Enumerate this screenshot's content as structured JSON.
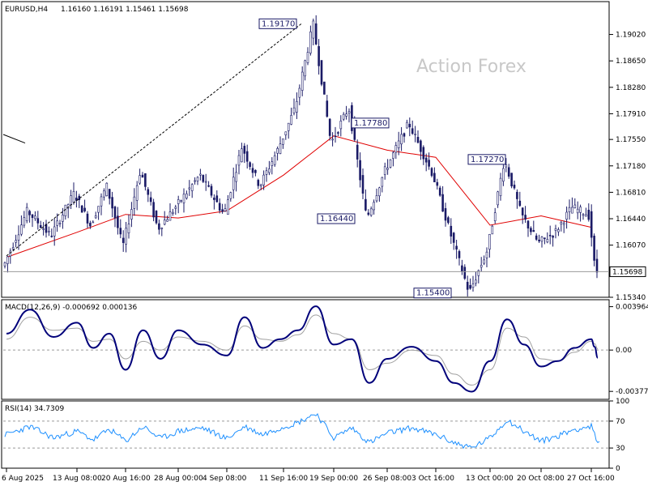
{
  "header": {
    "symbol": "EURUSD,H4",
    "ohlc": "1.16160 1.16191 1.15461 1.15698"
  },
  "watermark": "Action Forex",
  "colors": {
    "candle": "#1a1a66",
    "ma": "#e00000",
    "macd_main": "#00007a",
    "macd_signal": "#a0a0a0",
    "rsi": "#1e90ff",
    "level": "#9a9a9a",
    "border": "#000000"
  },
  "x_labels": [
    "6 Aug 2025",
    "13 Aug 08:00",
    "20 Aug 16:00",
    "28 Aug 00:00",
    "4 Sep 08:00",
    "11 Sep 16:00",
    "19 Sep 00:00",
    "26 Sep 08:00",
    "3 Oct 16:00",
    "13 Oct 00:00",
    "20 Oct 08:00",
    "27 Oct 16:00"
  ],
  "price_panel": {
    "tick_labels": [
      "1.19020",
      "1.18650",
      "1.18280",
      "1.17910",
      "1.17550",
      "1.17180",
      "1.16810",
      "1.16440",
      "1.16070",
      "1.15340"
    ],
    "current_price": "1.15698",
    "callouts": [
      "1.19170",
      "1.17780",
      "1.17270",
      "1.16440",
      "1.15400"
    ]
  },
  "macd_panel": {
    "label": "MACD(12,26,9) -0.000692 0.000136",
    "tick_labels": [
      "0.003964",
      "0.00",
      "-0.003774"
    ]
  },
  "rsi_panel": {
    "label": "RSI(14) 34.7309",
    "tick_labels": [
      "100",
      "70",
      "30",
      "0"
    ]
  },
  "chart_data": [
    {
      "type": "candlestick",
      "title": "EURUSD,H4",
      "ylim": [
        1.1534,
        1.1948
      ],
      "x_range": [
        "6 Aug 2025",
        "27 Oct 16:00"
      ],
      "key_levels": [
        {
          "label": "1.19170",
          "value": 1.1917
        },
        {
          "label": "1.17780",
          "value": 1.1778
        },
        {
          "label": "1.17270",
          "value": 1.1727
        },
        {
          "label": "1.16440",
          "value": 1.1644
        },
        {
          "label": "1.15400",
          "value": 1.154
        }
      ],
      "anchors": [
        {
          "x": "6 Aug 2025",
          "y": 1.1578
        },
        {
          "x": "8 Aug",
          "y": 1.1655
        },
        {
          "x": "11 Aug",
          "y": 1.162
        },
        {
          "x": "13 Aug 08:00",
          "y": 1.168
        },
        {
          "x": "15 Aug",
          "y": 1.1635
        },
        {
          "x": "18 Aug",
          "y": 1.169
        },
        {
          "x": "20 Aug 16:00",
          "y": 1.1605
        },
        {
          "x": "22 Aug",
          "y": 1.1712
        },
        {
          "x": "25 Aug",
          "y": 1.163
        },
        {
          "x": "28 Aug 00:00",
          "y": 1.166
        },
        {
          "x": "1 Sep",
          "y": 1.1705
        },
        {
          "x": "4 Sep 08:00",
          "y": 1.165
        },
        {
          "x": "8 Sep",
          "y": 1.1745
        },
        {
          "x": "10 Sep",
          "y": 1.169
        },
        {
          "x": "12 Sep",
          "y": 1.174
        },
        {
          "x": "15 Sep",
          "y": 1.18
        },
        {
          "x": "17 Sep",
          "y": 1.1917
        },
        {
          "x": "19 Sep 00:00",
          "y": 1.175
        },
        {
          "x": "23 Sep",
          "y": 1.18
        },
        {
          "x": "25 Sep",
          "y": 1.1644
        },
        {
          "x": "26 Sep 08:00",
          "y": 1.171
        },
        {
          "x": "30 Sep",
          "y": 1.1778
        },
        {
          "x": "3 Oct 16:00",
          "y": 1.1705
        },
        {
          "x": "7 Oct",
          "y": 1.162
        },
        {
          "x": "9 Oct",
          "y": 1.154
        },
        {
          "x": "13 Oct 00:00",
          "y": 1.16
        },
        {
          "x": "15 Oct",
          "y": 1.1727
        },
        {
          "x": "17 Oct",
          "y": 1.165
        },
        {
          "x": "20 Oct 08:00",
          "y": 1.161
        },
        {
          "x": "22 Oct",
          "y": 1.1625
        },
        {
          "x": "24 Oct",
          "y": 1.166
        },
        {
          "x": "27 Oct 16:00",
          "y": 1.165
        },
        {
          "x": "29 Oct",
          "y": 1.1616
        },
        {
          "x": "30 Oct",
          "y": 1.157
        }
      ],
      "moving_average_anchors": [
        {
          "x": "6 Aug 2025",
          "y": 1.159
        },
        {
          "x": "13 Aug 08:00",
          "y": 1.1625
        },
        {
          "x": "20 Aug 16:00",
          "y": 1.165
        },
        {
          "x": "28 Aug 00:00",
          "y": 1.1645
        },
        {
          "x": "4 Sep 08:00",
          "y": 1.1655
        },
        {
          "x": "11 Sep 16:00",
          "y": 1.1705
        },
        {
          "x": "19 Sep 00:00",
          "y": 1.176
        },
        {
          "x": "26 Sep 08:00",
          "y": 1.174
        },
        {
          "x": "3 Oct 16:00",
          "y": 1.173
        },
        {
          "x": "13 Oct 00:00",
          "y": 1.1635
        },
        {
          "x": "20 Oct 08:00",
          "y": 1.1648
        },
        {
          "x": "27 Oct 16:00",
          "y": 1.1632
        }
      ],
      "current_price": 1.15698
    },
    {
      "type": "line",
      "title": "MACD(12,26,9)",
      "ylim": [
        -0.0045,
        0.0046
      ],
      "values_shown": {
        "main": -0.000692,
        "signal": 0.000136
      },
      "main_anchors": [
        {
          "x": "6 Aug 2025",
          "y": 0.0015
        },
        {
          "x": "8 Aug",
          "y": 0.0037
        },
        {
          "x": "11 Aug",
          "y": 0.0012
        },
        {
          "x": "13 Aug 08:00",
          "y": 0.0025
        },
        {
          "x": "15 Aug",
          "y": 0.0002
        },
        {
          "x": "18 Aug",
          "y": 0.0015
        },
        {
          "x": "20 Aug 16:00",
          "y": -0.0018
        },
        {
          "x": "22 Aug",
          "y": 0.0018
        },
        {
          "x": "25 Aug",
          "y": -0.0008
        },
        {
          "x": "28 Aug 00:00",
          "y": 0.0018
        },
        {
          "x": "1 Sep",
          "y": 0.0005
        },
        {
          "x": "4 Sep 08:00",
          "y": -0.0005
        },
        {
          "x": "8 Sep",
          "y": 0.003
        },
        {
          "x": "10 Sep",
          "y": 0.0002
        },
        {
          "x": "12 Sep",
          "y": 0.001
        },
        {
          "x": "15 Sep",
          "y": 0.0018
        },
        {
          "x": "17 Sep",
          "y": 0.004
        },
        {
          "x": "19 Sep 00:00",
          "y": 0.0005
        },
        {
          "x": "23 Sep",
          "y": 0.001
        },
        {
          "x": "25 Sep",
          "y": -0.003
        },
        {
          "x": "26 Sep 08:00",
          "y": -0.0008
        },
        {
          "x": "30 Sep",
          "y": 0.0003
        },
        {
          "x": "3 Oct 16:00",
          "y": -0.001
        },
        {
          "x": "7 Oct",
          "y": -0.003
        },
        {
          "x": "9 Oct",
          "y": -0.0038
        },
        {
          "x": "13 Oct 00:00",
          "y": -0.001
        },
        {
          "x": "15 Oct",
          "y": 0.0028
        },
        {
          "x": "17 Oct",
          "y": 0.0005
        },
        {
          "x": "20 Oct 08:00",
          "y": -0.0015
        },
        {
          "x": "22 Oct",
          "y": -0.001
        },
        {
          "x": "24 Oct",
          "y": 0.0002
        },
        {
          "x": "27 Oct 16:00",
          "y": 0.001
        },
        {
          "x": "29 Oct",
          "y": 0.0003
        },
        {
          "x": "30 Oct",
          "y": -0.0007
        }
      ],
      "signal_anchors": [
        {
          "x": "6 Aug 2025",
          "y": 0.001
        },
        {
          "x": "8 Aug",
          "y": 0.003
        },
        {
          "x": "11 Aug",
          "y": 0.0018
        },
        {
          "x": "13 Aug 08:00",
          "y": 0.002
        },
        {
          "x": "15 Aug",
          "y": 0.0008
        },
        {
          "x": "18 Aug",
          "y": 0.001
        },
        {
          "x": "20 Aug 16:00",
          "y": -0.0008
        },
        {
          "x": "22 Aug",
          "y": 0.0008
        },
        {
          "x": "25 Aug",
          "y": 0.0
        },
        {
          "x": "28 Aug 00:00",
          "y": 0.0012
        },
        {
          "x": "1 Sep",
          "y": 0.0008
        },
        {
          "x": "4 Sep 08:00",
          "y": 0.0
        },
        {
          "x": "8 Sep",
          "y": 0.0022
        },
        {
          "x": "10 Sep",
          "y": 0.001
        },
        {
          "x": "12 Sep",
          "y": 0.0008
        },
        {
          "x": "15 Sep",
          "y": 0.0014
        },
        {
          "x": "17 Sep",
          "y": 0.0032
        },
        {
          "x": "19 Sep 00:00",
          "y": 0.0015
        },
        {
          "x": "23 Sep",
          "y": 0.001
        },
        {
          "x": "25 Sep",
          "y": -0.0018
        },
        {
          "x": "26 Sep 08:00",
          "y": -0.0012
        },
        {
          "x": "30 Sep",
          "y": 0.0
        },
        {
          "x": "3 Oct 16:00",
          "y": -0.0005
        },
        {
          "x": "7 Oct",
          "y": -0.0022
        },
        {
          "x": "9 Oct",
          "y": -0.0032
        },
        {
          "x": "13 Oct 00:00",
          "y": -0.0018
        },
        {
          "x": "15 Oct",
          "y": 0.002
        },
        {
          "x": "17 Oct",
          "y": 0.0012
        },
        {
          "x": "20 Oct 08:00",
          "y": -0.0008
        },
        {
          "x": "22 Oct",
          "y": -0.001
        },
        {
          "x": "24 Oct",
          "y": -0.0002
        },
        {
          "x": "27 Oct 16:00",
          "y": 0.0008
        },
        {
          "x": "29 Oct",
          "y": 0.0006
        },
        {
          "x": "30 Oct",
          "y": 0.0001
        }
      ],
      "zero_line": 0
    },
    {
      "type": "line",
      "title": "RSI(14)",
      "ylim": [
        0,
        100
      ],
      "value_shown": 34.7309,
      "levels": [
        70,
        30
      ],
      "anchors": [
        {
          "x": "6 Aug 2025",
          "y": 50
        },
        {
          "x": "8 Aug",
          "y": 62
        },
        {
          "x": "11 Aug",
          "y": 45
        },
        {
          "x": "13 Aug 08:00",
          "y": 55
        },
        {
          "x": "15 Aug",
          "y": 42
        },
        {
          "x": "18 Aug",
          "y": 58
        },
        {
          "x": "20 Aug 16:00",
          "y": 40
        },
        {
          "x": "22 Aug",
          "y": 62
        },
        {
          "x": "25 Aug",
          "y": 44
        },
        {
          "x": "28 Aug 00:00",
          "y": 55
        },
        {
          "x": "1 Sep",
          "y": 60
        },
        {
          "x": "4 Sep 08:00",
          "y": 44
        },
        {
          "x": "8 Sep",
          "y": 62
        },
        {
          "x": "10 Sep",
          "y": 50
        },
        {
          "x": "12 Sep",
          "y": 60
        },
        {
          "x": "15 Sep",
          "y": 68
        },
        {
          "x": "17 Sep",
          "y": 82
        },
        {
          "x": "19 Sep 00:00",
          "y": 45
        },
        {
          "x": "23 Sep",
          "y": 60
        },
        {
          "x": "25 Sep",
          "y": 38
        },
        {
          "x": "26 Sep 08:00",
          "y": 52
        },
        {
          "x": "30 Sep",
          "y": 60
        },
        {
          "x": "3 Oct 16:00",
          "y": 50
        },
        {
          "x": "7 Oct",
          "y": 38
        },
        {
          "x": "9 Oct",
          "y": 30
        },
        {
          "x": "13 Oct 00:00",
          "y": 45
        },
        {
          "x": "15 Oct",
          "y": 72
        },
        {
          "x": "17 Oct",
          "y": 55
        },
        {
          "x": "20 Oct 08:00",
          "y": 40
        },
        {
          "x": "22 Oct",
          "y": 48
        },
        {
          "x": "24 Oct",
          "y": 58
        },
        {
          "x": "27 Oct 16:00",
          "y": 62
        },
        {
          "x": "29 Oct",
          "y": 50
        },
        {
          "x": "30 Oct",
          "y": 35
        }
      ]
    }
  ]
}
